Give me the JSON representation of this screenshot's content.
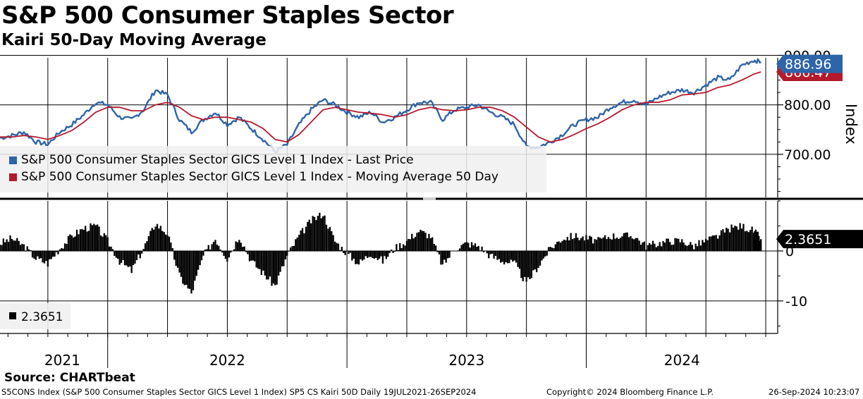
{
  "header": {
    "title": "S&P 500 Consumer Staples Sector",
    "subtitle": "Kairi 50-Day Moving Average"
  },
  "footer": {
    "source": "Source: CHARTbeat",
    "description": "S5CONS Index (S&P 500 Consumer Staples Sector GICS Level 1 Index) SP5 CS Kairi 50D  Daily 19JUL2021-26SEP2024",
    "copyright": "Copyright© 2024 Bloomberg Finance L.P.",
    "timestamp": "26-Sep-2024 10:23:07"
  },
  "colors": {
    "price": "#2e64a8",
    "price_light": "#8eaed4",
    "ma": "#b41a2c",
    "kairi": "#000000",
    "grid": "#000000"
  },
  "chart_data": [
    {
      "type": "line",
      "name": "price-panel",
      "ylabel": "Index",
      "ylim": [
        613,
        895
      ],
      "yticks": [
        700,
        800,
        900
      ],
      "ytick_labels": [
        "700.00",
        "800.00",
        "900.00"
      ],
      "legend": [
        {
          "label": "S&P 500 Consumer Staples Sector GICS Level 1 Index - Last Price",
          "color": "#2e64a8"
        },
        {
          "label": "S&P 500 Consumer Staples Sector GICS Level 1 Index - Moving Average 50 Day",
          "color": "#b41a2c"
        }
      ],
      "last_values": [
        {
          "label": "886.96",
          "value": 886.96,
          "color": "#2e64a8"
        },
        {
          "label": "866.47",
          "value": 866.47,
          "color": "#b41a2c"
        }
      ],
      "x": [
        2021.55,
        2021.6,
        2021.65,
        2021.7,
        2021.75,
        2021.8,
        2021.85,
        2021.9,
        2021.95,
        2022.0,
        2022.05,
        2022.1,
        2022.15,
        2022.2,
        2022.25,
        2022.3,
        2022.35,
        2022.4,
        2022.45,
        2022.5,
        2022.55,
        2022.6,
        2022.65,
        2022.7,
        2022.75,
        2022.8,
        2022.85,
        2022.9,
        2022.95,
        2023.0,
        2023.05,
        2023.1,
        2023.15,
        2023.2,
        2023.25,
        2023.3,
        2023.35,
        2023.4,
        2023.45,
        2023.5,
        2023.55,
        2023.6,
        2023.65,
        2023.7,
        2023.75,
        2023.8,
        2023.85,
        2023.9,
        2023.95,
        2024.0,
        2024.05,
        2024.1,
        2024.15,
        2024.2,
        2024.25,
        2024.3,
        2024.35,
        2024.4,
        2024.45,
        2024.5,
        2024.55,
        2024.6,
        2024.65,
        2024.7,
        2024.73
      ],
      "series": [
        {
          "name": "Last Price",
          "values": [
            733,
            738,
            745,
            725,
            720,
            745,
            760,
            780,
            805,
            800,
            775,
            770,
            790,
            830,
            820,
            770,
            745,
            770,
            785,
            760,
            775,
            752,
            730,
            705,
            720,
            760,
            790,
            810,
            800,
            785,
            775,
            785,
            765,
            775,
            790,
            805,
            805,
            770,
            790,
            795,
            800,
            785,
            775,
            760,
            715,
            715,
            725,
            740,
            760,
            770,
            775,
            795,
            805,
            810,
            800,
            815,
            825,
            830,
            825,
            840,
            855,
            850,
            880,
            890,
            887
          ]
        },
        {
          "name": "Moving Average 50 Day",
          "values": [
            735,
            735,
            738,
            735,
            730,
            738,
            748,
            765,
            785,
            795,
            795,
            788,
            788,
            800,
            805,
            795,
            778,
            770,
            775,
            775,
            770,
            765,
            752,
            730,
            725,
            740,
            765,
            790,
            795,
            790,
            785,
            783,
            780,
            775,
            780,
            790,
            795,
            790,
            788,
            790,
            795,
            795,
            788,
            775,
            755,
            735,
            725,
            730,
            740,
            752,
            762,
            775,
            790,
            800,
            805,
            805,
            810,
            820,
            822,
            825,
            835,
            840,
            850,
            862,
            866.47
          ]
        }
      ]
    },
    {
      "type": "bar",
      "name": "kairi-panel",
      "ylim": [
        -16.5,
        10
      ],
      "yticks": [
        0,
        -10
      ],
      "ytick_labels": [
        "0",
        "-10"
      ],
      "legend": [
        {
          "label": "2.3651",
          "color": "#000000"
        }
      ],
      "last_value": {
        "label": "2.3651",
        "value": 2.3651
      },
      "x": [
        2021.55,
        2021.6,
        2021.65,
        2021.7,
        2021.75,
        2021.8,
        2021.85,
        2021.9,
        2021.95,
        2022.0,
        2022.05,
        2022.1,
        2022.15,
        2022.2,
        2022.25,
        2022.3,
        2022.35,
        2022.4,
        2022.45,
        2022.5,
        2022.55,
        2022.6,
        2022.65,
        2022.7,
        2022.75,
        2022.8,
        2022.85,
        2022.9,
        2022.95,
        2023.0,
        2023.05,
        2023.1,
        2023.15,
        2023.2,
        2023.25,
        2023.3,
        2023.35,
        2023.4,
        2023.45,
        2023.5,
        2023.55,
        2023.6,
        2023.65,
        2023.7,
        2023.75,
        2023.8,
        2023.85,
        2023.9,
        2023.95,
        2024.0,
        2024.05,
        2024.1,
        2024.15,
        2024.2,
        2024.25,
        2024.3,
        2024.35,
        2024.4,
        2024.45,
        2024.5,
        2024.55,
        2024.6,
        2024.65,
        2024.7,
        2024.73
      ],
      "values": [
        1.5,
        2.5,
        1,
        -1.5,
        -2.5,
        0.5,
        3,
        4.5,
        5,
        2,
        -2,
        -4,
        0.5,
        5.5,
        3.5,
        -5,
        -8.5,
        -1,
        2.5,
        -1.5,
        3,
        -2,
        -4.5,
        -7,
        -1,
        3,
        6,
        7.5,
        2,
        -0.5,
        -2.5,
        -0.5,
        -2,
        0.5,
        2,
        4,
        3,
        -3,
        0.5,
        1.5,
        1,
        -1,
        -2,
        -2.5,
        -6.5,
        -3,
        0.5,
        2.5,
        3,
        2.5,
        2,
        3,
        3,
        3,
        1,
        1.5,
        2,
        2,
        1,
        2,
        3,
        4.5,
        5,
        4,
        2.3651
      ]
    }
  ],
  "xaxis": {
    "year_labels": [
      "2021",
      "2022",
      "2023",
      "2024"
    ]
  }
}
